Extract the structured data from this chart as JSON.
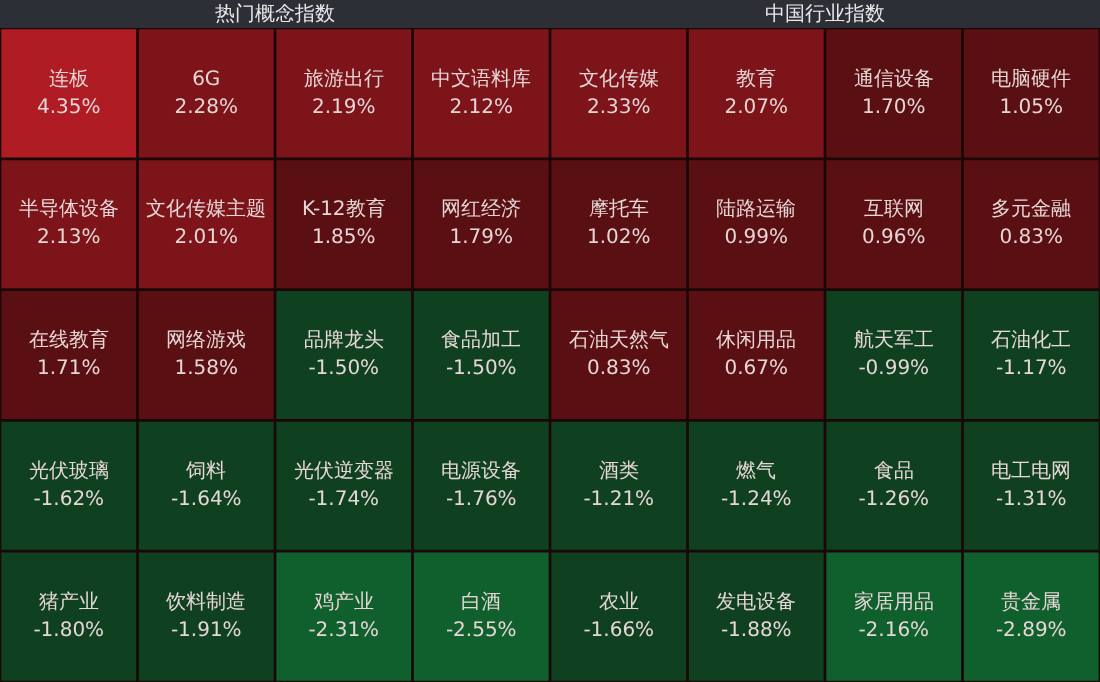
{
  "chart_data": [
    {
      "type": "other",
      "title": "热门概念指数",
      "categories": [
        "连板",
        "6G",
        "旅游出行",
        "中文语料库",
        "半导体设备",
        "文化传媒主题",
        "K-12教育",
        "网红经济",
        "在线教育",
        "网络游戏",
        "品牌龙头",
        "食品加工",
        "光伏玻璃",
        "饲料",
        "光伏逆变器",
        "电源设备",
        "猪产业",
        "饮料制造",
        "鸡产业",
        "白酒"
      ],
      "values": [
        4.35,
        2.28,
        2.19,
        2.12,
        2.13,
        2.01,
        1.85,
        1.79,
        1.71,
        1.58,
        -1.5,
        -1.5,
        -1.62,
        -1.64,
        -1.74,
        -1.76,
        -1.8,
        -1.91,
        -2.31,
        -2.55
      ],
      "value_labels": [
        "4.35%",
        "2.28%",
        "2.19%",
        "2.12%",
        "2.13%",
        "2.01%",
        "1.85%",
        "1.79%",
        "1.71%",
        "1.58%",
        "-1.50%",
        "-1.50%",
        "-1.62%",
        "-1.64%",
        "-1.74%",
        "-1.76%",
        "-1.80%",
        "-1.91%",
        "-2.31%",
        "-2.55%"
      ]
    },
    {
      "type": "other",
      "title": "中国行业指数",
      "categories": [
        "文化传媒",
        "教育",
        "通信设备",
        "电脑硬件",
        "摩托车",
        "陆路运输",
        "互联网",
        "多元金融",
        "石油天然气",
        "休闲用品",
        "航天军工",
        "石油化工",
        "酒类",
        "燃气",
        "食品",
        "电工电网",
        "农业",
        "发电设备",
        "家居用品",
        "贵金属"
      ],
      "values": [
        2.33,
        2.07,
        1.7,
        1.05,
        1.02,
        0.99,
        0.96,
        0.83,
        0.83,
        0.67,
        -0.99,
        -1.17,
        -1.21,
        -1.24,
        -1.26,
        -1.31,
        -1.66,
        -1.88,
        -2.16,
        -2.89
      ],
      "value_labels": [
        "2.33%",
        "2.07%",
        "1.70%",
        "1.05%",
        "1.02%",
        "0.99%",
        "0.96%",
        "0.83%",
        "0.83%",
        "0.67%",
        "-0.99%",
        "-1.17%",
        "-1.21%",
        "-1.24%",
        "-1.26%",
        "-1.31%",
        "-1.66%",
        "-1.88%",
        "-2.16%",
        "-2.89%"
      ]
    }
  ]
}
